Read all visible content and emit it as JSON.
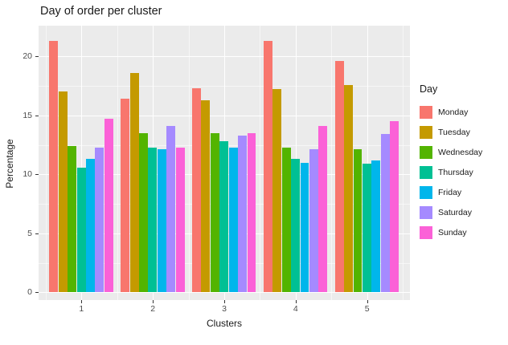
{
  "chart_data": {
    "type": "bar",
    "title": "Day of order per cluster",
    "xlabel": "Clusters",
    "ylabel": "Percentage",
    "legend_title": "Day",
    "legend_position": "right",
    "categories": [
      "1",
      "2",
      "3",
      "4",
      "5"
    ],
    "series": [
      {
        "name": "Monday",
        "color": "#F8766D",
        "values": [
          21.3,
          16.4,
          17.3,
          21.3,
          19.6
        ]
      },
      {
        "name": "Tuesday",
        "color": "#C49A00",
        "values": [
          17.0,
          18.6,
          16.3,
          17.2,
          17.6
        ]
      },
      {
        "name": "Wednesday",
        "color": "#53B400",
        "values": [
          12.4,
          13.5,
          13.5,
          12.3,
          12.1
        ]
      },
      {
        "name": "Thursday",
        "color": "#00C094",
        "values": [
          10.6,
          12.3,
          12.8,
          11.3,
          10.9
        ]
      },
      {
        "name": "Friday",
        "color": "#00B6EB",
        "values": [
          11.3,
          12.1,
          12.3,
          11.0,
          11.2
        ]
      },
      {
        "name": "Saturday",
        "color": "#A58AFF",
        "values": [
          12.3,
          14.1,
          13.3,
          12.1,
          13.4
        ]
      },
      {
        "name": "Sunday",
        "color": "#FB61D7",
        "values": [
          14.7,
          12.3,
          13.5,
          14.1,
          14.5
        ]
      }
    ],
    "ylim": [
      -0.65,
      22.6
    ],
    "yticks": [
      0,
      5,
      10,
      15,
      20
    ],
    "yticks_minor": [
      2.5,
      7.5,
      12.5,
      17.5
    ],
    "grid": true,
    "panel_background": "#EBEBEB",
    "grid_color": "#FFFFFF"
  }
}
